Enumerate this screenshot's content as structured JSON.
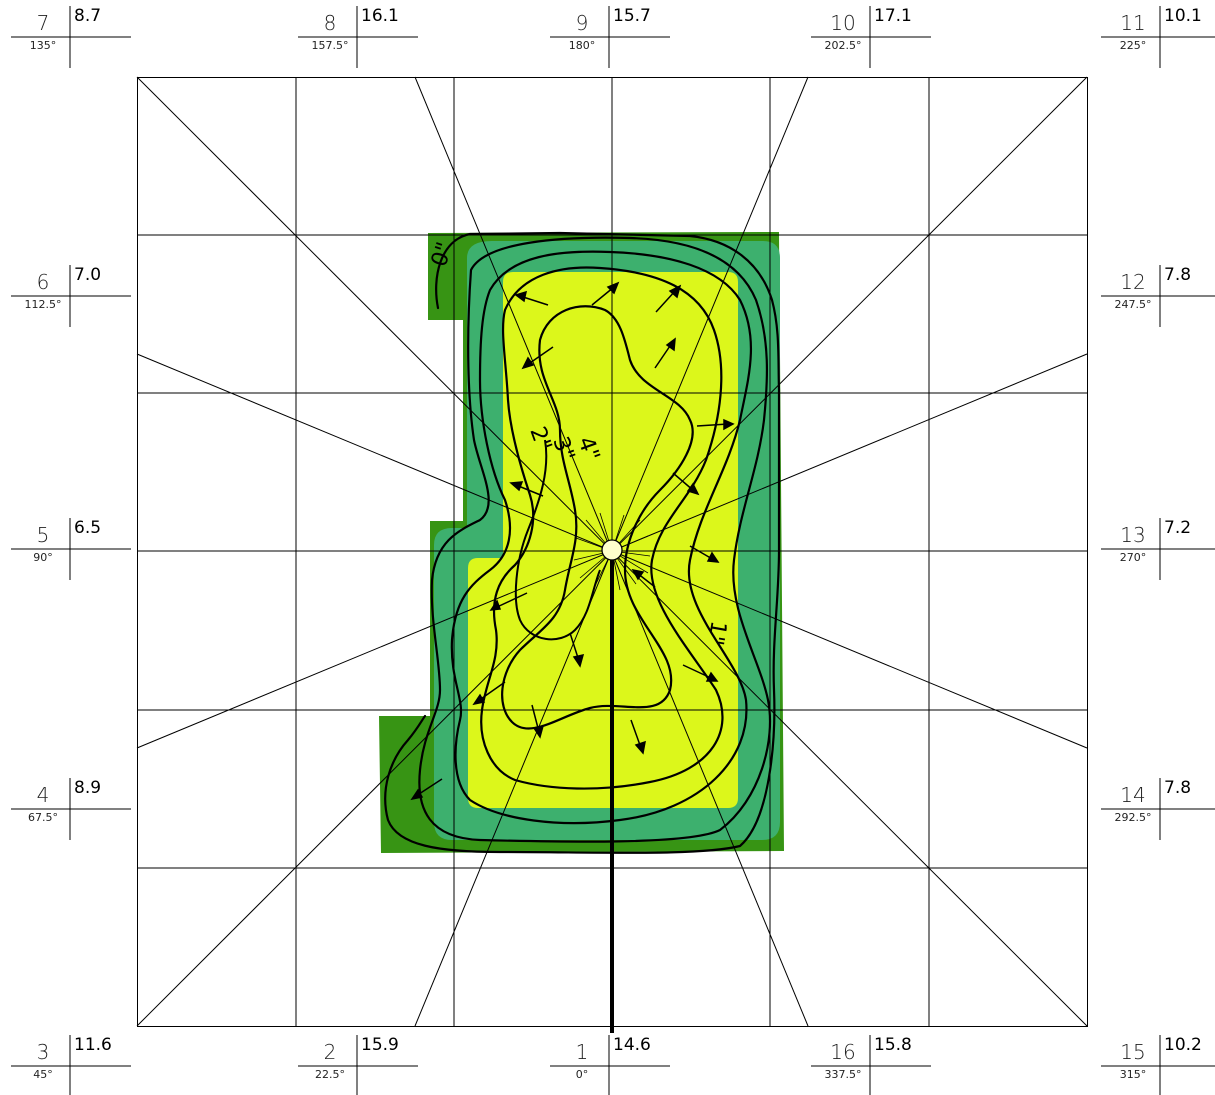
{
  "colors": {
    "dark_green": "#379414",
    "mid_green": "#3DB06E",
    "light_green": "#DCF71B",
    "line": "#000000",
    "background": "#ffffff"
  },
  "contour_labels": [
    "0\"",
    "1\"",
    "2\"",
    "3\"",
    "4\""
  ],
  "stations": [
    {
      "id": "1",
      "angle": "0°",
      "value": "14.6"
    },
    {
      "id": "2",
      "angle": "22.5°",
      "value": "15.9"
    },
    {
      "id": "3",
      "angle": "45°",
      "value": "11.6"
    },
    {
      "id": "4",
      "angle": "67.5°",
      "value": "8.9"
    },
    {
      "id": "5",
      "angle": "90°",
      "value": "6.5"
    },
    {
      "id": "6",
      "angle": "112.5°",
      "value": "7.0"
    },
    {
      "id": "7",
      "angle": "135°",
      "value": "8.7"
    },
    {
      "id": "8",
      "angle": "157.5°",
      "value": "16.1"
    },
    {
      "id": "9",
      "angle": "180°",
      "value": "15.7"
    },
    {
      "id": "10",
      "angle": "202.5°",
      "value": "17.1"
    },
    {
      "id": "11",
      "angle": "225°",
      "value": "10.1"
    },
    {
      "id": "12",
      "angle": "247.5°",
      "value": "7.8"
    },
    {
      "id": "13",
      "angle": "270°",
      "value": "7.2"
    },
    {
      "id": "14",
      "angle": "292.5°",
      "value": "7.8"
    },
    {
      "id": "15",
      "angle": "315°",
      "value": "10.2"
    },
    {
      "id": "16",
      "angle": "337.5°",
      "value": "15.8"
    }
  ]
}
